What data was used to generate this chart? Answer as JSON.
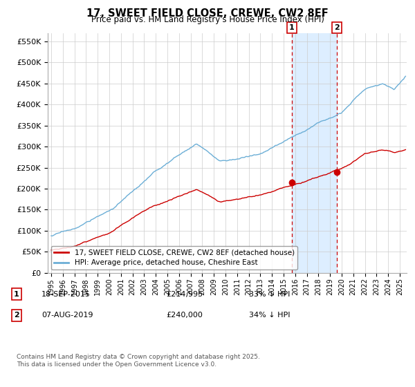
{
  "title": "17, SWEET FIELD CLOSE, CREWE, CW2 8EF",
  "subtitle": "Price paid vs. HM Land Registry's House Price Index (HPI)",
  "ylabel_ticks": [
    "£0",
    "£50K",
    "£100K",
    "£150K",
    "£200K",
    "£250K",
    "£300K",
    "£350K",
    "£400K",
    "£450K",
    "£500K",
    "£550K"
  ],
  "ytick_values": [
    0,
    50000,
    100000,
    150000,
    200000,
    250000,
    300000,
    350000,
    400000,
    450000,
    500000,
    550000
  ],
  "ylim": [
    0,
    570000
  ],
  "xlim_start": 1994.7,
  "xlim_end": 2025.6,
  "hpi_color": "#6baed6",
  "price_color": "#cc0000",
  "highlight_bg": "#ddeeff",
  "marker1_x": 2015.72,
  "marker1_y": 214995,
  "marker2_x": 2019.59,
  "marker2_y": 240000,
  "legend_entries": [
    "17, SWEET FIELD CLOSE, CREWE, CW2 8EF (detached house)",
    "HPI: Average price, detached house, Cheshire East"
  ],
  "annotation1": [
    "1",
    "18-SEP-2015",
    "£214,995",
    "33% ↓ HPI"
  ],
  "annotation2": [
    "2",
    "07-AUG-2019",
    "£240,000",
    "34% ↓ HPI"
  ],
  "footer": "Contains HM Land Registry data © Crown copyright and database right 2025.\nThis data is licensed under the Open Government Licence v3.0.",
  "x_ticks": [
    1995,
    1996,
    1997,
    1998,
    1999,
    2000,
    2001,
    2002,
    2003,
    2004,
    2005,
    2006,
    2007,
    2008,
    2009,
    2010,
    2011,
    2012,
    2013,
    2014,
    2015,
    2016,
    2017,
    2018,
    2019,
    2020,
    2021,
    2022,
    2023,
    2024,
    2025
  ],
  "hpi_seed": 17,
  "price_seed": 23
}
